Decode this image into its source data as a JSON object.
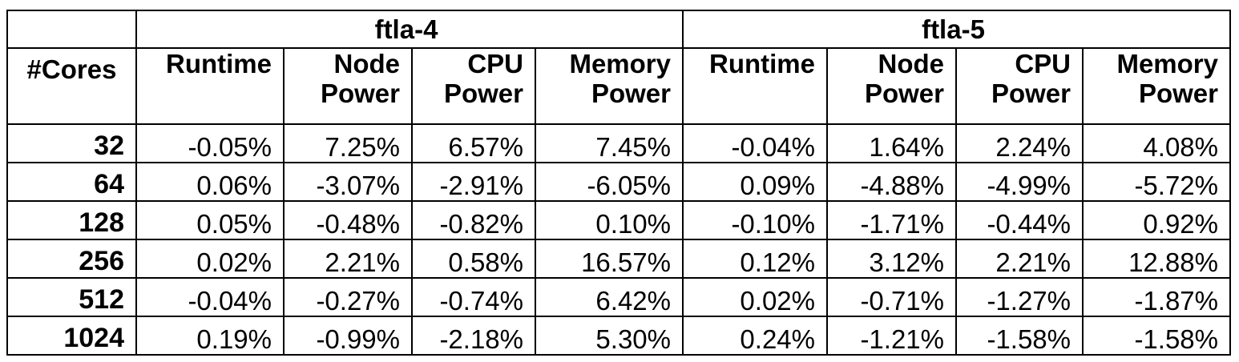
{
  "table": {
    "groups": [
      {
        "label": "ftla-4"
      },
      {
        "label": "ftla-5"
      }
    ],
    "corner_label": "",
    "cores_header": "#Cores",
    "columns": {
      "runtime": "Runtime",
      "node_power": [
        "Node",
        "Power"
      ],
      "cpu_power": [
        "CPU",
        "Power"
      ],
      "memory_power": [
        "Memory",
        "Power"
      ]
    },
    "rows": [
      {
        "cores": "32",
        "ftla4": [
          "-0.05%",
          "7.25%",
          "6.57%",
          "7.45%"
        ],
        "ftla5": [
          "-0.04%",
          "1.64%",
          "2.24%",
          "4.08%"
        ]
      },
      {
        "cores": "64",
        "ftla4": [
          "0.06%",
          "-3.07%",
          "-2.91%",
          "-6.05%"
        ],
        "ftla5": [
          "0.09%",
          "-4.88%",
          "-4.99%",
          "-5.72%"
        ]
      },
      {
        "cores": "128",
        "ftla4": [
          "0.05%",
          "-0.48%",
          "-0.82%",
          "0.10%"
        ],
        "ftla5": [
          "-0.10%",
          "-1.71%",
          "-0.44%",
          "0.92%"
        ]
      },
      {
        "cores": "256",
        "ftla4": [
          "0.02%",
          "2.21%",
          "0.58%",
          "16.57%"
        ],
        "ftla5": [
          "0.12%",
          "3.12%",
          "2.21%",
          "12.88%"
        ]
      },
      {
        "cores": "512",
        "ftla4": [
          "-0.04%",
          "-0.27%",
          "-0.74%",
          "6.42%"
        ],
        "ftla5": [
          "0.02%",
          "-0.71%",
          "-1.27%",
          "-1.87%"
        ]
      },
      {
        "cores": "1024",
        "ftla4": [
          "0.19%",
          "-0.99%",
          "-2.18%",
          "5.30%"
        ],
        "ftla5": [
          "0.24%",
          "-1.21%",
          "-1.58%",
          "-1.58%"
        ]
      }
    ]
  }
}
